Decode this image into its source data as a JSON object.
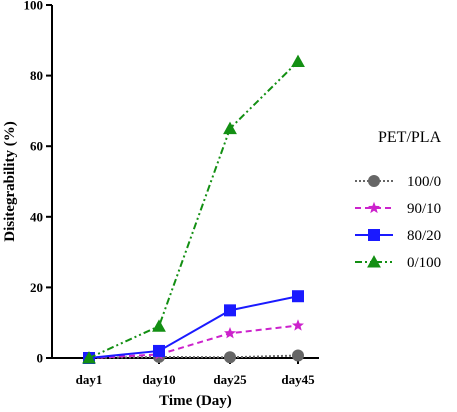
{
  "chart_data": {
    "type": "line",
    "title": "",
    "xlabel": "Time (Day)",
    "ylabel": "Disitegrability  (%)",
    "categories": [
      "day1",
      "day10",
      "day25",
      "day45"
    ],
    "ylim": [
      0,
      100
    ],
    "yticks": [
      0,
      20,
      40,
      60,
      80,
      100
    ],
    "grid": false,
    "legend": {
      "title": "PET/PLA",
      "position": "right"
    },
    "series": [
      {
        "name": "100/0",
        "values": [
          0,
          0.3,
          0.2,
          0.7
        ],
        "color": "#666666",
        "marker": "circle",
        "dash": "2,2"
      },
      {
        "name": "90/10",
        "values": [
          0,
          1.0,
          7.0,
          9.2
        ],
        "color": "#cc22cc",
        "marker": "star",
        "dash": "6,4"
      },
      {
        "name": "80/20",
        "values": [
          0,
          2.0,
          13.5,
          17.5
        ],
        "color": "#1a1aff",
        "marker": "square",
        "dash": ""
      },
      {
        "name": "0/100",
        "values": [
          0,
          9.0,
          65.0,
          84.0
        ],
        "color": "#138f13",
        "marker": "triangle",
        "dash": "7,3,2,3,2,3"
      }
    ]
  }
}
